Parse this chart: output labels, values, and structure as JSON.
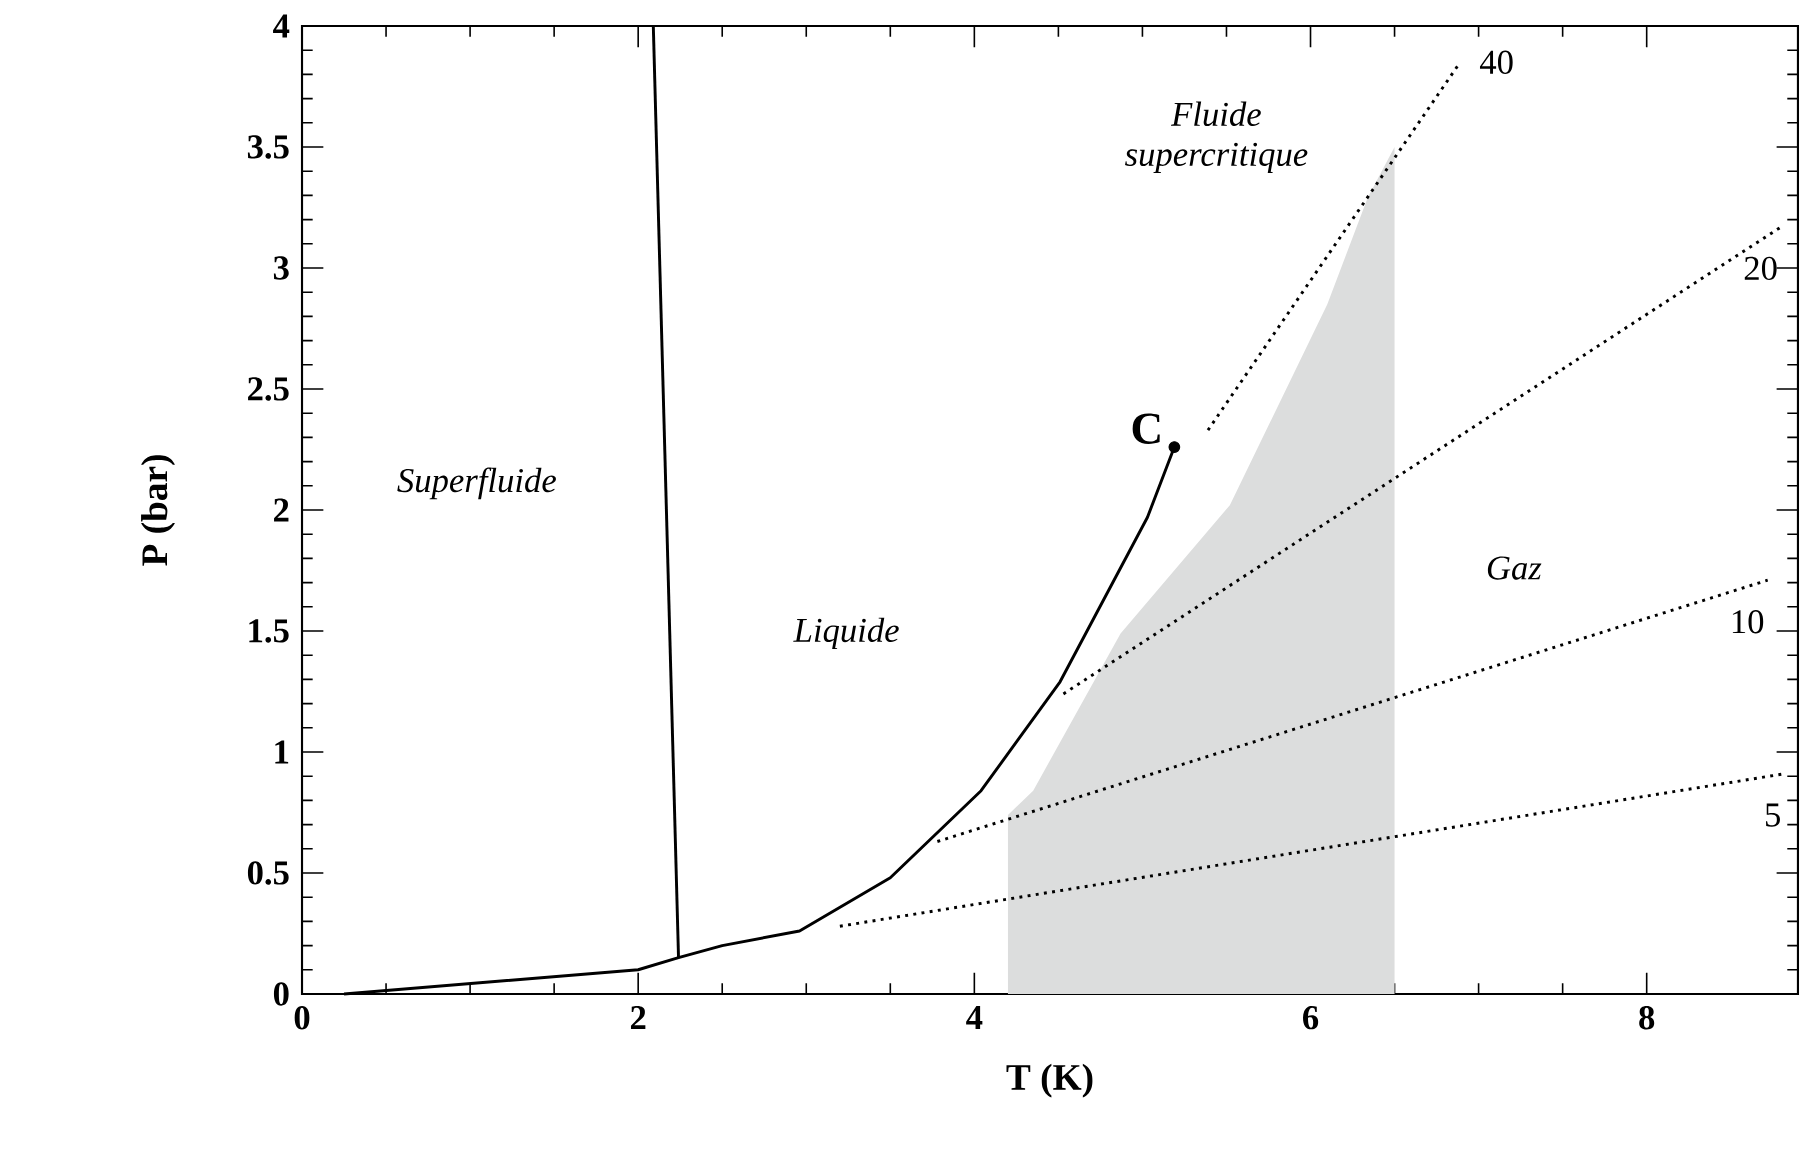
{
  "chart_data": {
    "type": "line",
    "xlabel": "T (K)",
    "ylabel": "P (bar)",
    "xlim": [
      0,
      8.9
    ],
    "ylim": [
      0,
      4
    ],
    "xticks": [
      0,
      2,
      4,
      6,
      8
    ],
    "yticks": [
      0,
      0.5,
      1,
      1.5,
      2,
      2.5,
      3,
      3.5,
      4
    ],
    "series": [
      {
        "type": "area",
        "color": "#dcdddd",
        "x": [
          4.2,
          4.2,
          4.35,
          4.87,
          5.52,
          6.1,
          6.34,
          6.5,
          6.5
        ],
        "values": [
          0,
          0.74,
          0.84,
          1.49,
          2.02,
          2.85,
          3.29,
          3.5,
          0
        ]
      },
      {
        "color": "#000000",
        "line_style": "dotted",
        "x": [
          5.39,
          6.89
        ],
        "values": [
          2.33,
          3.85
        ]
      },
      {
        "color": "#000000",
        "line_style": "dotted",
        "x": [
          4.53,
          8.8
        ],
        "values": [
          1.24,
          3.17
        ]
      },
      {
        "color": "#000000",
        "line_style": "dotted",
        "x": [
          3.78,
          8.72
        ],
        "values": [
          0.63,
          1.71
        ]
      },
      {
        "color": "#000000",
        "line_style": "dotted",
        "x": [
          3.2,
          8.82
        ],
        "values": [
          0.28,
          0.91
        ]
      },
      {
        "color": "#000000",
        "line_style": "solid",
        "x": [
          2.09,
          2.24
        ],
        "values": [
          4,
          0.15
        ]
      },
      {
        "color": "#000000",
        "line_style": "solid",
        "x": [
          0.25,
          2.0,
          2.24,
          2.5,
          2.96,
          3.5,
          4.04,
          4.51,
          5.03,
          5.19
        ],
        "values": [
          0.0,
          0.1,
          0.15,
          0.2,
          0.26,
          0.48,
          0.84,
          1.29,
          1.97,
          2.26
        ]
      },
      {
        "type": "scatter",
        "color": "#000000",
        "marker": "circle",
        "x": [
          5.19
        ],
        "values": [
          2.26
        ]
      }
    ],
    "annotations": [
      "Superfluide",
      "Liquide",
      "Fluide supercritique",
      "Gaz",
      {
        "text": "C",
        "x": 5.19,
        "y": 2.26
      },
      {
        "text": "40",
        "x": 6.89,
        "y": 3.85
      },
      {
        "text": "20",
        "x": 8.8,
        "y": 3.17
      },
      {
        "text": "10",
        "x": 8.72,
        "y": 1.71
      },
      {
        "text": "5",
        "x": 8.82,
        "y": 0.91
      }
    ]
  }
}
